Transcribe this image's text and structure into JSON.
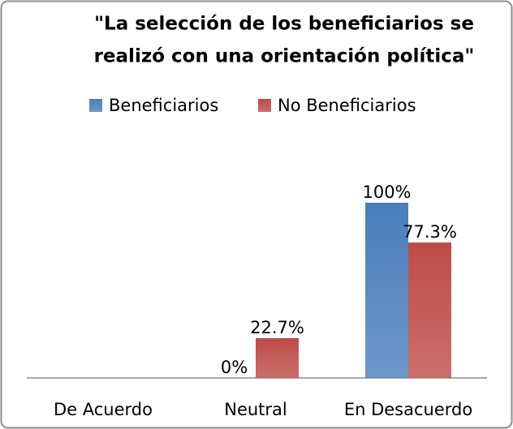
{
  "chart_data": {
    "type": "bar",
    "title": [
      "\"La selección de los beneficiarios se",
      "realizó con una orientación política\""
    ],
    "categories": [
      "De Acuerdo",
      "Neutral",
      "En Desacuerdo"
    ],
    "series": [
      {
        "name": "Beneficiarios",
        "color": "#4a7ebb",
        "values": [
          null,
          0,
          100
        ],
        "value_labels": [
          null,
          "0%",
          "100%"
        ]
      },
      {
        "name": "No Beneficiarios",
        "color": "#be4b48",
        "values": [
          null,
          22.7,
          77.3
        ],
        "value_labels": [
          null,
          "22.7%",
          "77.3%"
        ]
      }
    ],
    "legend": "top"
  }
}
